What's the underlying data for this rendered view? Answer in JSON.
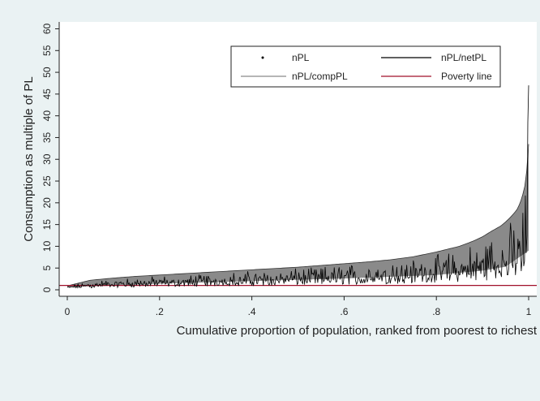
{
  "chart_data": {
    "type": "area",
    "title": "",
    "xlabel": "Cumulative proportion of population, ranked from poorest to richest",
    "ylabel": "Consumption as multiple of PL",
    "xlim": [
      0,
      1
    ],
    "ylim": [
      0,
      61
    ],
    "x_ticks": [
      0,
      0.2,
      0.4,
      0.6,
      0.8,
      1
    ],
    "x_tick_labels": [
      "0",
      ".2",
      ".4",
      ".6",
      ".8",
      "1"
    ],
    "y_ticks": [
      0,
      5,
      10,
      15,
      20,
      25,
      30,
      35,
      40,
      45,
      50,
      55,
      60
    ],
    "y_tick_labels": [
      "0",
      "5",
      "10",
      "15",
      "20",
      "25",
      "30",
      "35",
      "40",
      "45",
      "50",
      "55",
      "60"
    ],
    "grid": false,
    "legend_position": "top-right",
    "legend": [
      {
        "name": "nPL",
        "style": "marker",
        "color": "#000000"
      },
      {
        "name": "nPL/netPL",
        "style": "line",
        "color": "#000000"
      },
      {
        "name": "nPL/compPL",
        "style": "line",
        "color": "#8a8a8a"
      },
      {
        "name": "Poverty line",
        "style": "line",
        "color": "#a0102a"
      }
    ],
    "series": [
      {
        "name": "nPL",
        "x": [
          0,
          0.05,
          0.1,
          0.15,
          0.2,
          0.25,
          0.3,
          0.35,
          0.4,
          0.45,
          0.5,
          0.55,
          0.6,
          0.65,
          0.7,
          0.75,
          0.8,
          0.85,
          0.88,
          0.9,
          0.92,
          0.94,
          0.95,
          0.96,
          0.97,
          0.975,
          0.98,
          0.985,
          0.99,
          0.993,
          0.996,
          0.998,
          1.0
        ],
        "values": [
          0.9,
          2.2,
          2.7,
          3.1,
          3.4,
          3.7,
          4.0,
          4.3,
          4.6,
          4.9,
          5.2,
          5.6,
          6.0,
          6.4,
          6.9,
          7.6,
          8.7,
          10.0,
          11.2,
          12.2,
          13.5,
          14.7,
          15.6,
          16.6,
          17.8,
          18.5,
          19.6,
          21.0,
          23.0,
          24.5,
          27.5,
          30.0,
          33.5
        ]
      },
      {
        "name": "nPL/netPL",
        "x": [
          0,
          0.05,
          0.1,
          0.2,
          0.3,
          0.4,
          0.5,
          0.6,
          0.7,
          0.8,
          0.85,
          0.9,
          0.95,
          0.98,
          0.99,
          0.995,
          0.998,
          1.0
        ],
        "values": [
          0.5,
          1.1,
          1.3,
          1.6,
          1.9,
          2.2,
          2.5,
          2.9,
          3.3,
          3.9,
          4.4,
          5.2,
          6.3,
          7.5,
          9.5,
          13.0,
          25.0,
          47.0
        ]
      },
      {
        "name": "nPL/compPL",
        "x": [
          0,
          0.2,
          0.4,
          0.6,
          0.8,
          0.9,
          0.95,
          1.0
        ],
        "values": [
          0.6,
          1.4,
          2.0,
          2.6,
          3.4,
          4.4,
          5.3,
          9.0
        ]
      },
      {
        "name": "Poverty line",
        "x": [
          0,
          1
        ],
        "values": [
          1,
          1
        ]
      }
    ]
  }
}
